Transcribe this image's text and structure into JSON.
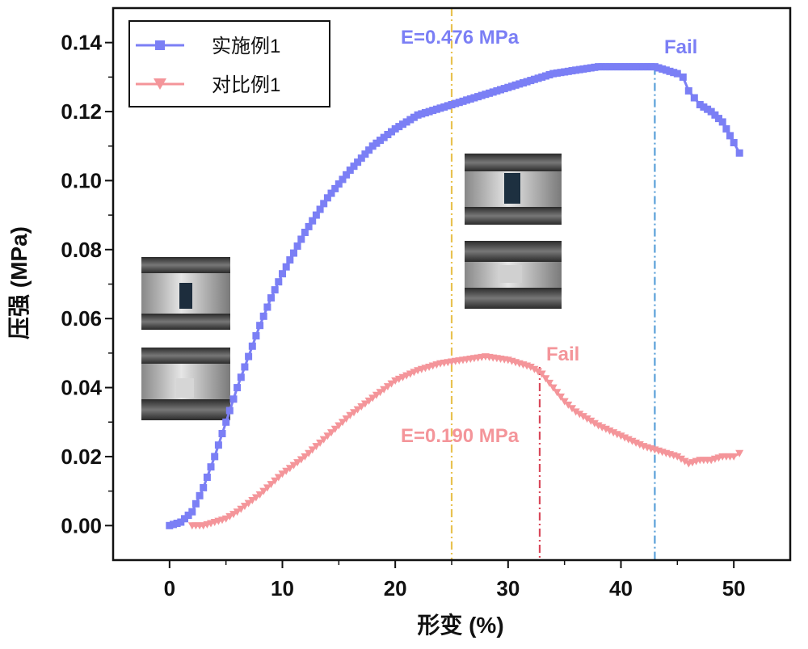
{
  "chart_data": {
    "type": "line",
    "xlabel": "形变 (%)",
    "ylabel": "压强 (MPa)",
    "xlim": [
      -5,
      55
    ],
    "ylim": [
      -0.01,
      0.15
    ],
    "xticks": [
      0,
      10,
      20,
      30,
      40,
      50
    ],
    "yticks": [
      0.0,
      0.02,
      0.04,
      0.06,
      0.08,
      0.1,
      0.12,
      0.14
    ],
    "xtick_labels": [
      "0",
      "10",
      "20",
      "30",
      "40",
      "50"
    ],
    "ytick_labels": [
      "0.00",
      "0.02",
      "0.04",
      "0.06",
      "0.08",
      "0.10",
      "0.12",
      "0.14"
    ],
    "grid": false,
    "legend_position": "top-left",
    "series": [
      {
        "name": "实施例1",
        "color": "#7b7ff5",
        "marker": "square",
        "x": [
          0,
          1,
          2,
          3,
          4,
          5,
          6,
          7,
          8,
          9,
          10,
          12,
          14,
          16,
          18,
          20,
          22,
          24,
          25,
          26,
          28,
          30,
          32,
          34,
          36,
          38,
          40,
          42,
          43,
          44,
          45,
          45.5,
          46,
          46.5,
          47,
          48,
          49,
          50,
          50.5
        ],
        "y": [
          0.0,
          0.001,
          0.004,
          0.011,
          0.02,
          0.03,
          0.04,
          0.049,
          0.058,
          0.066,
          0.073,
          0.085,
          0.095,
          0.103,
          0.11,
          0.115,
          0.119,
          0.121,
          0.122,
          0.123,
          0.125,
          0.127,
          0.129,
          0.131,
          0.132,
          0.133,
          0.133,
          0.133,
          0.133,
          0.132,
          0.131,
          0.13,
          0.126,
          0.124,
          0.122,
          0.12,
          0.117,
          0.111,
          0.108
        ]
      },
      {
        "name": "对比例1",
        "color": "#f4959a",
        "marker": "triangle-down",
        "x": [
          2,
          3,
          4,
          5,
          6,
          8,
          10,
          12,
          14,
          16,
          18,
          20,
          22,
          24,
          26,
          28,
          30,
          31,
          32,
          33,
          34,
          35,
          36,
          38,
          40,
          42,
          44,
          45,
          46,
          47,
          48,
          49,
          50,
          50.5
        ],
        "y": [
          0.0,
          0.0,
          0.001,
          0.002,
          0.004,
          0.009,
          0.015,
          0.02,
          0.026,
          0.032,
          0.037,
          0.042,
          0.045,
          0.047,
          0.048,
          0.049,
          0.048,
          0.047,
          0.046,
          0.044,
          0.04,
          0.036,
          0.033,
          0.029,
          0.026,
          0.023,
          0.021,
          0.02,
          0.018,
          0.019,
          0.019,
          0.02,
          0.02,
          0.021
        ]
      }
    ],
    "reference_lines": [
      {
        "x": 25,
        "color": "#e8c250",
        "style": "dash-dot"
      },
      {
        "x": 43,
        "color": "#5aa0d8",
        "style": "dash-dot"
      },
      {
        "x": 32.8,
        "color": "#d9485a",
        "style": "dash-dot"
      }
    ],
    "annotations": [
      {
        "text": "E=0.476 MPa",
        "color": "#7b7ff5"
      },
      {
        "text": "Fail",
        "color": "#7b7ff5"
      },
      {
        "text": "Fail",
        "color": "#f4959a"
      },
      {
        "text": "E=0.190 MPa",
        "color": "#f4959a"
      }
    ]
  }
}
